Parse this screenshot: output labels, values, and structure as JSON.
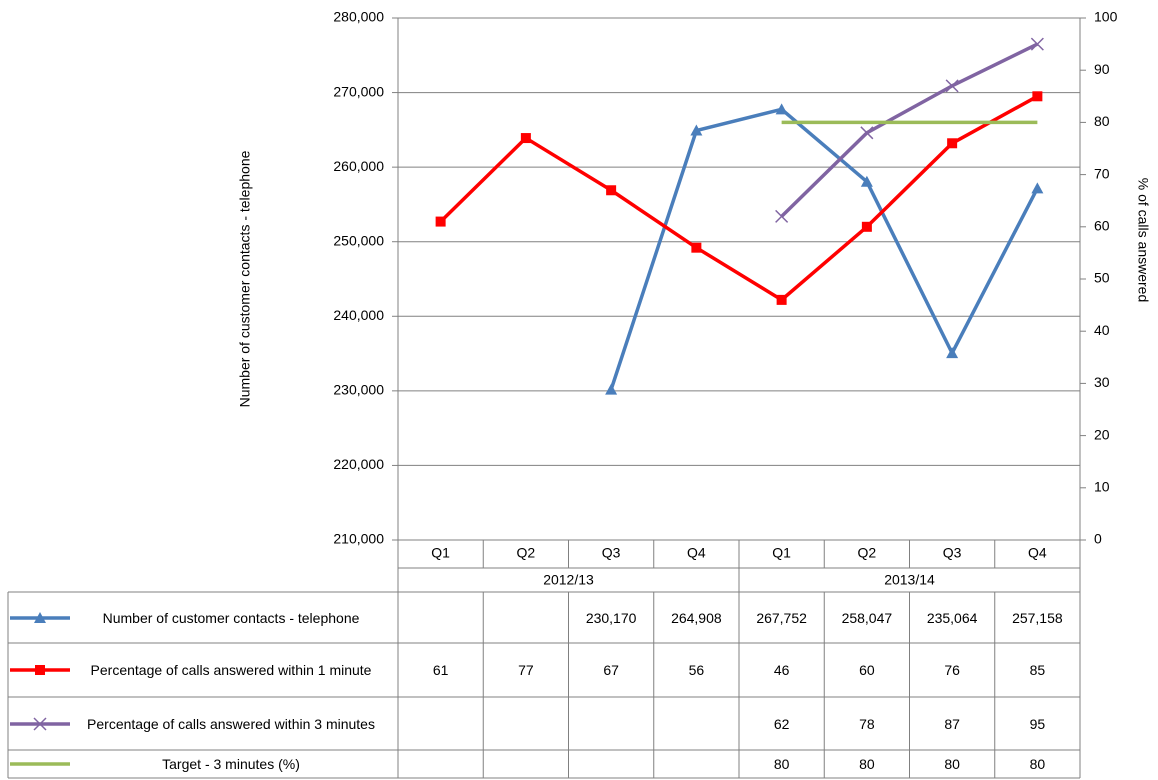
{
  "chart_data": {
    "type": "line",
    "y_label": "Number of customer contacts - telephone",
    "y2_label": "% of calls answered",
    "categories": [
      "Q1",
      "Q2",
      "Q3",
      "Q4",
      "Q1",
      "Q2",
      "Q3",
      "Q4"
    ],
    "group_labels": [
      "2012/13",
      "2013/14"
    ],
    "ylim": [
      210000,
      280000
    ],
    "yticks": [
      {
        "value": 210000,
        "label": "210,000"
      },
      {
        "value": 220000,
        "label": "220,000"
      },
      {
        "value": 230000,
        "label": "230,000"
      },
      {
        "value": 240000,
        "label": "240,000"
      },
      {
        "value": 250000,
        "label": "250,000"
      },
      {
        "value": 260000,
        "label": "260,000"
      },
      {
        "value": 270000,
        "label": "270,000"
      },
      {
        "value": 280000,
        "label": "280,000"
      }
    ],
    "y2lim": [
      0,
      100
    ],
    "y2ticks": [
      0,
      10,
      20,
      30,
      40,
      50,
      60,
      70,
      80,
      90,
      100
    ],
    "grid": true,
    "series": [
      {
        "name": "Number of customer contacts - telephone",
        "color": "#4a7ebb",
        "marker": "triangle",
        "values": [
          null,
          null,
          230170,
          264908,
          267752,
          258047,
          235064,
          257158
        ],
        "value_labels": [
          null,
          null,
          "230,170",
          "264,908",
          "267,752",
          "258,047",
          "235,064",
          "257,158"
        ]
      },
      {
        "name": "Percentage of calls answered within 1 minute",
        "color": "#ff0000",
        "marker": "square",
        "axis": "y2",
        "values": [
          61,
          77,
          67,
          56,
          46,
          60,
          76,
          85
        ]
      },
      {
        "name": "Percentage of calls answered within 3 minutes",
        "color": "#8064a2",
        "marker": "x",
        "axis": "y2",
        "values": [
          null,
          null,
          null,
          null,
          62,
          78,
          87,
          95
        ]
      },
      {
        "name": "Target - 3 minutes (%)",
        "color": "#9bbb59",
        "marker": "none",
        "axis": "y2",
        "values": [
          null,
          null,
          null,
          null,
          80,
          80,
          80,
          80
        ]
      }
    ]
  }
}
